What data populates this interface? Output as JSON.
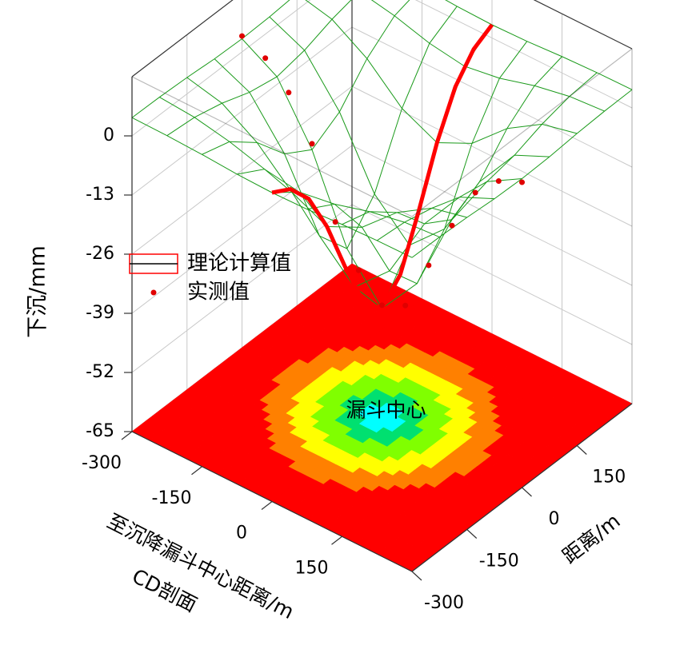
{
  "chart_data": {
    "type": "surface3d",
    "zlabel": "下沉/mm",
    "xlabel": "至沉降漏斗中心距离/m",
    "xlabel2": "CD剖面",
    "ylabel": "距离/m",
    "annotation": "漏斗中心",
    "xlim": [
      -300,
      300
    ],
    "xticks": [
      -300,
      -150,
      0,
      150
    ],
    "ylim": [
      -300,
      300
    ],
    "yticks": [
      -300,
      -150,
      0,
      150
    ],
    "zlim": [
      -65,
      13
    ],
    "zticks": [
      0,
      -13,
      -26,
      -39,
      -52,
      -65
    ],
    "grid": true,
    "surface": {
      "color": "#1a9a1a",
      "x": [
        -300,
        -225,
        -150,
        -75,
        0,
        75,
        150,
        225,
        300
      ],
      "y": [
        -300,
        -225,
        -150,
        -75,
        0,
        75,
        150,
        225,
        300
      ],
      "z": [
        [
          4,
          3.9,
          3.6,
          3.1,
          2.9,
          3.1,
          3.6,
          3.9,
          4
        ],
        [
          3.9,
          3.3,
          1.8,
          -0.4,
          -1.6,
          -0.4,
          1.8,
          3.3,
          3.9
        ],
        [
          3.6,
          1.8,
          -3,
          -10.1,
          -13.8,
          -10.1,
          -3,
          1.8,
          3.6
        ],
        [
          3.1,
          -0.4,
          -10.1,
          -24.3,
          -31.7,
          -24.3,
          -10.1,
          -0.4,
          3.1
        ],
        [
          2.9,
          -1.6,
          -13.8,
          -31.7,
          -41,
          -31.7,
          -13.8,
          -1.6,
          2.9
        ],
        [
          3.1,
          -0.4,
          -10.1,
          -24.3,
          -31.7,
          -24.3,
          -10.1,
          -0.4,
          3.1
        ],
        [
          3.6,
          1.8,
          -3,
          -10.1,
          -13.8,
          -10.1,
          -3,
          1.8,
          3.6
        ],
        [
          3.9,
          3.3,
          1.8,
          -0.4,
          -1.6,
          -0.4,
          1.8,
          3.3,
          3.9
        ],
        [
          4,
          3.9,
          3.6,
          3.1,
          2.9,
          3.1,
          3.6,
          3.9,
          4
        ]
      ]
    },
    "contour_levels": [
      -5,
      -13,
      -22,
      -30,
      -36
    ],
    "contour_colors": [
      "#ff0000",
      "#ff8000",
      "#ffff00",
      "#80ff00",
      "#00e070",
      "#00ffff"
    ],
    "series": [
      {
        "name": "理论计算值",
        "color": "#ff0000",
        "style": "line",
        "x": 0,
        "y": [
          -300,
          -250,
          -200,
          -150,
          -100,
          -50,
          0,
          50,
          100,
          150,
          200,
          250,
          300
        ],
        "values": [
          2.9,
          0.6,
          -4.6,
          -13.8,
          -25.8,
          -36.6,
          -41,
          -36.6,
          -25.8,
          -13.8,
          -4.6,
          0.6,
          2.9
        ]
      },
      {
        "name": "实测值",
        "color": "#e00000",
        "style": "points",
        "y": 0,
        "x": [
          -300,
          -250,
          -200,
          -150,
          -100,
          -50,
          0,
          50,
          100,
          150,
          200,
          250,
          300
        ],
        "values": [
          3.5,
          1.2,
          -3.8,
          -12.5,
          -27.1,
          -35.2,
          -40.3,
          -37.8,
          -26.4,
          -15.1,
          -5.3,
          -0.2,
          2.1
        ]
      }
    ]
  }
}
